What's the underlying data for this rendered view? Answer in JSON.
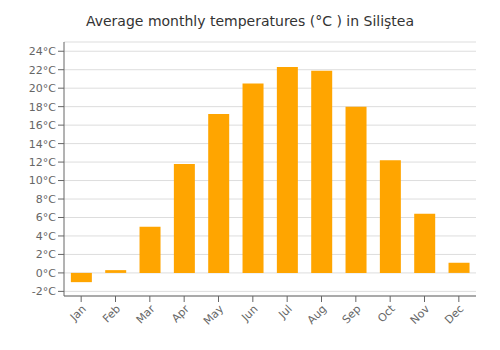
{
  "chart_data": {
    "type": "bar",
    "title": "Average monthly temperatures (°C ) in Siliştea",
    "categories": [
      "Jan",
      "Feb",
      "Mar",
      "Apr",
      "May",
      "Jun",
      "Jul",
      "Aug",
      "Sep",
      "Oct",
      "Nov",
      "Dec"
    ],
    "values": [
      -1.0,
      0.3,
      5.0,
      11.8,
      17.2,
      20.5,
      22.3,
      21.9,
      18.0,
      12.2,
      6.4,
      1.1
    ],
    "color": "#FFA500",
    "ylim": [
      -2.5,
      25
    ],
    "yticks": [
      {
        "value": -2,
        "label": "-2°C"
      },
      {
        "value": 0,
        "label": "0°C"
      },
      {
        "value": 2,
        "label": "2°C"
      },
      {
        "value": 4,
        "label": "4°C"
      },
      {
        "value": 6,
        "label": "6°C"
      },
      {
        "value": 8,
        "label": "8°C"
      },
      {
        "value": 10,
        "label": "10°C"
      },
      {
        "value": 12,
        "label": "12°C"
      },
      {
        "value": 14,
        "label": "14°C"
      },
      {
        "value": 16,
        "label": "16°C"
      },
      {
        "value": 18,
        "label": "18°C"
      },
      {
        "value": 20,
        "label": "20°C"
      },
      {
        "value": 22,
        "label": "22°C"
      },
      {
        "value": 24,
        "label": "24°C"
      }
    ],
    "grid": true
  }
}
